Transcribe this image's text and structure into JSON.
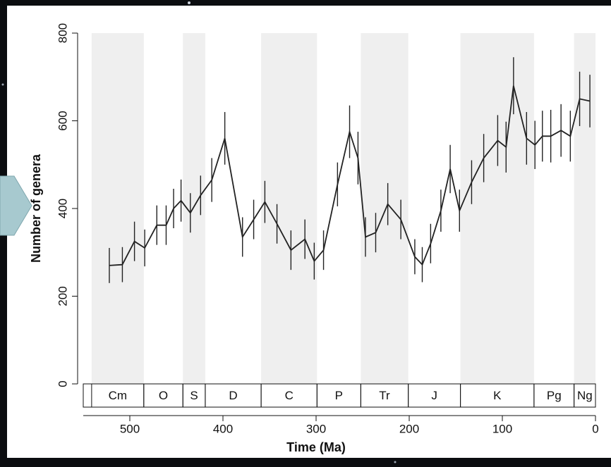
{
  "chart_data": {
    "type": "line",
    "x_label": "Time (Ma)",
    "y_label": "Number of genera",
    "x": [
      522,
      508,
      495,
      484,
      471,
      461,
      453,
      445,
      435,
      424,
      412,
      398,
      379,
      367,
      355,
      342,
      327,
      312,
      302,
      292,
      277,
      264,
      255,
      247,
      236,
      223,
      209,
      194,
      186,
      177,
      166,
      156,
      146,
      133,
      120,
      105,
      96,
      88,
      74,
      65,
      57,
      48,
      37,
      27,
      17,
      6
    ],
    "values": [
      270,
      272,
      325,
      310,
      362,
      362,
      400,
      418,
      390,
      430,
      465,
      560,
      335,
      375,
      415,
      365,
      305,
      330,
      280,
      305,
      455,
      575,
      515,
      335,
      345,
      410,
      375,
      290,
      272,
      320,
      395,
      490,
      395,
      460,
      515,
      555,
      540,
      680,
      560,
      545,
      565,
      565,
      578,
      565,
      650,
      645
    ],
    "errors": [
      40,
      40,
      45,
      42,
      45,
      45,
      45,
      48,
      45,
      45,
      50,
      60,
      45,
      45,
      48,
      45,
      45,
      45,
      42,
      45,
      50,
      60,
      60,
      45,
      45,
      48,
      45,
      40,
      40,
      45,
      48,
      55,
      48,
      50,
      55,
      58,
      58,
      65,
      60,
      55,
      58,
      60,
      60,
      58,
      62,
      60
    ],
    "color": "#222222",
    "xlim": [
      550,
      0
    ],
    "ylim": [
      0,
      800
    ],
    "xticks": [
      500,
      400,
      300,
      200,
      100,
      0
    ],
    "yticks": [
      0,
      200,
      400,
      600,
      800
    ],
    "shade_color": "#efefef",
    "periods": [
      {
        "label": "Cm",
        "start": 541,
        "end": 485
      },
      {
        "label": "O",
        "start": 485,
        "end": 443
      },
      {
        "label": "S",
        "start": 443,
        "end": 419
      },
      {
        "label": "D",
        "start": 419,
        "end": 359
      },
      {
        "label": "C",
        "start": 359,
        "end": 299
      },
      {
        "label": "P",
        "start": 299,
        "end": 252
      },
      {
        "label": "Tr",
        "start": 252,
        "end": 201
      },
      {
        "label": "J",
        "start": 201,
        "end": 145
      },
      {
        "label": "K",
        "start": 145,
        "end": 66
      },
      {
        "label": "Pg",
        "start": 66,
        "end": 23
      },
      {
        "label": "Ng",
        "start": 23,
        "end": 0
      }
    ]
  }
}
